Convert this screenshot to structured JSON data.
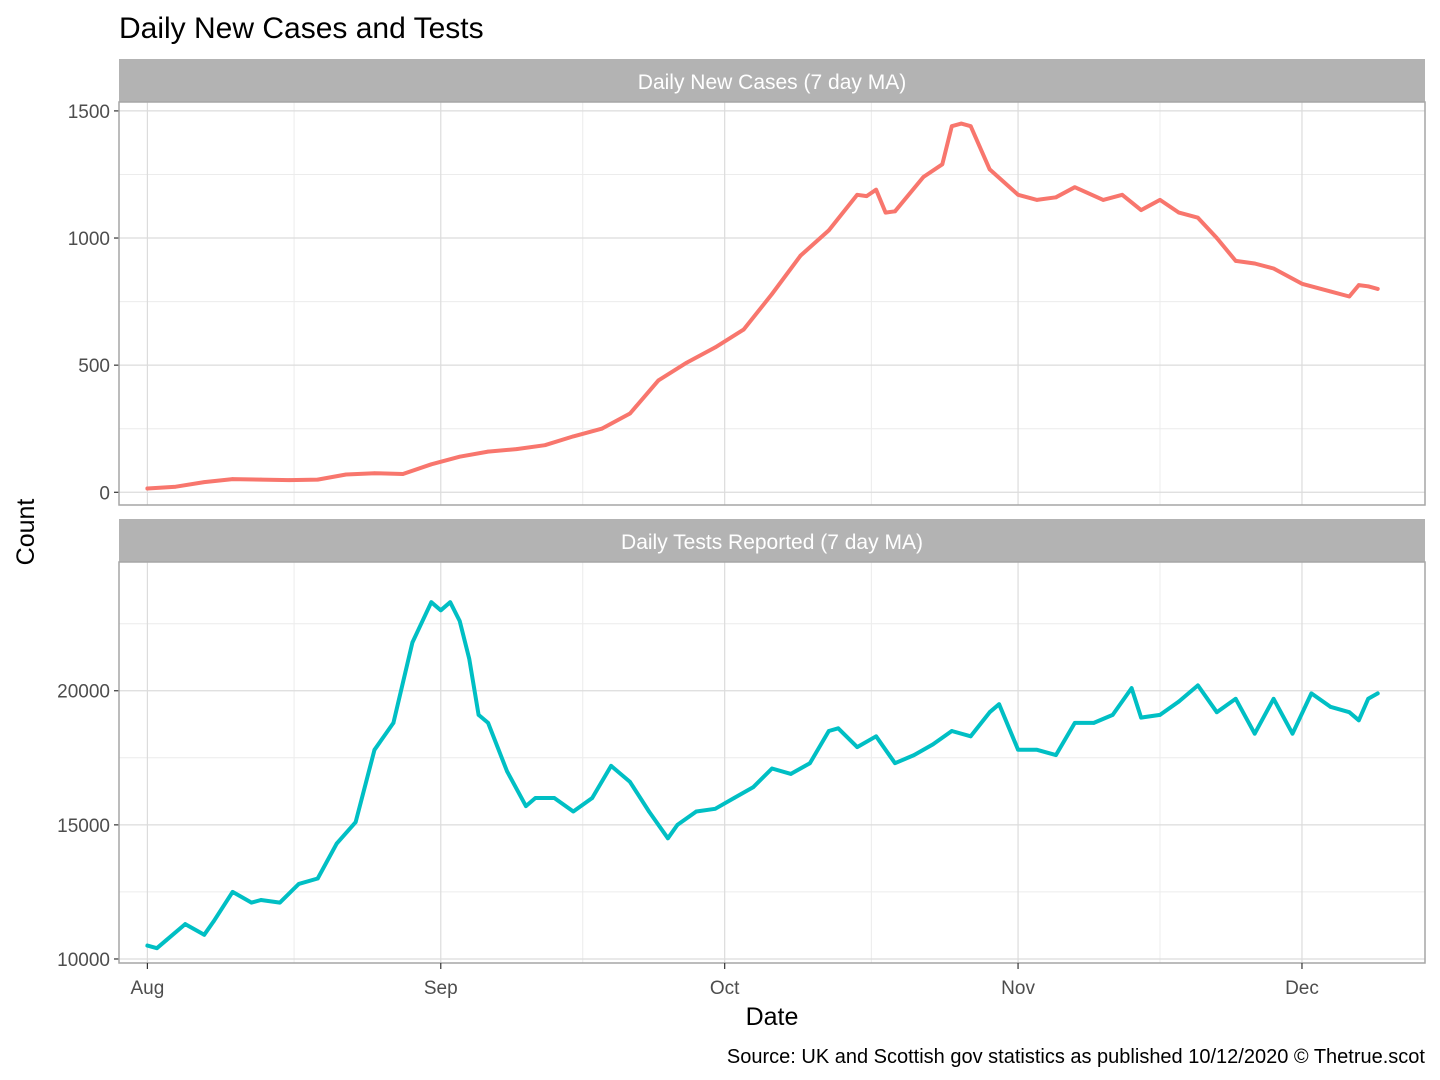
{
  "chart_data": {
    "type": "line",
    "title": "Daily New Cases and Tests",
    "xlabel": "Date",
    "ylabel": "Count",
    "caption": "Source: UK and Scottish gov statistics as published 10/12/2020  © Thetrue.scot",
    "x_range": [
      "2020-07-29",
      "2020-12-14"
    ],
    "x_ticks": [
      {
        "date": "2020-08-01",
        "label": "Aug"
      },
      {
        "date": "2020-09-01",
        "label": "Sep"
      },
      {
        "date": "2020-10-01",
        "label": "Oct"
      },
      {
        "date": "2020-11-01",
        "label": "Nov"
      },
      {
        "date": "2020-12-01",
        "label": "Dec"
      }
    ],
    "grid": true,
    "panels": [
      {
        "strip": "Daily New Cases (7 day MA)",
        "color": "#F8766D",
        "ylim": [
          -50,
          1535
        ],
        "y_ticks": [
          0,
          500,
          1000,
          1500
        ],
        "x": [
          "2020-08-01",
          "2020-08-04",
          "2020-08-07",
          "2020-08-10",
          "2020-08-13",
          "2020-08-16",
          "2020-08-19",
          "2020-08-22",
          "2020-08-25",
          "2020-08-28",
          "2020-08-31",
          "2020-09-03",
          "2020-09-06",
          "2020-09-09",
          "2020-09-12",
          "2020-09-15",
          "2020-09-18",
          "2020-09-21",
          "2020-09-24",
          "2020-09-27",
          "2020-09-30",
          "2020-10-03",
          "2020-10-06",
          "2020-10-09",
          "2020-10-12",
          "2020-10-15",
          "2020-10-16",
          "2020-10-17",
          "2020-10-18",
          "2020-10-19",
          "2020-10-22",
          "2020-10-24",
          "2020-10-25",
          "2020-10-26",
          "2020-10-27",
          "2020-10-29",
          "2020-11-01",
          "2020-11-03",
          "2020-11-05",
          "2020-11-07",
          "2020-11-10",
          "2020-11-12",
          "2020-11-14",
          "2020-11-16",
          "2020-11-18",
          "2020-11-20",
          "2020-11-22",
          "2020-11-24",
          "2020-11-26",
          "2020-11-28",
          "2020-12-01",
          "2020-12-04",
          "2020-12-06",
          "2020-12-07",
          "2020-12-08",
          "2020-12-09"
        ],
        "values": [
          15,
          22,
          40,
          52,
          50,
          48,
          50,
          70,
          75,
          72,
          110,
          140,
          160,
          170,
          185,
          220,
          250,
          310,
          440,
          510,
          570,
          640,
          780,
          930,
          1030,
          1170,
          1165,
          1190,
          1100,
          1105,
          1240,
          1290,
          1440,
          1450,
          1440,
          1270,
          1170,
          1150,
          1160,
          1200,
          1150,
          1170,
          1110,
          1150,
          1100,
          1080,
          1000,
          910,
          900,
          880,
          820,
          790,
          770,
          815,
          810,
          800
        ]
      },
      {
        "strip": "Daily Tests Reported (7 day MA)",
        "color": "#00BFC4",
        "ylim": [
          9850,
          24800
        ],
        "y_ticks": [
          10000,
          15000,
          20000
        ],
        "x": [
          "2020-08-01",
          "2020-08-02",
          "2020-08-03",
          "2020-08-05",
          "2020-08-07",
          "2020-08-08",
          "2020-08-10",
          "2020-08-12",
          "2020-08-13",
          "2020-08-15",
          "2020-08-17",
          "2020-08-19",
          "2020-08-21",
          "2020-08-23",
          "2020-08-25",
          "2020-08-27",
          "2020-08-29",
          "2020-08-31",
          "2020-09-01",
          "2020-09-02",
          "2020-09-03",
          "2020-09-04",
          "2020-09-05",
          "2020-09-06",
          "2020-09-08",
          "2020-09-10",
          "2020-09-11",
          "2020-09-13",
          "2020-09-15",
          "2020-09-17",
          "2020-09-19",
          "2020-09-21",
          "2020-09-23",
          "2020-09-25",
          "2020-09-26",
          "2020-09-28",
          "2020-09-30",
          "2020-10-02",
          "2020-10-04",
          "2020-10-06",
          "2020-10-08",
          "2020-10-10",
          "2020-10-12",
          "2020-10-13",
          "2020-10-15",
          "2020-10-17",
          "2020-10-19",
          "2020-10-21",
          "2020-10-23",
          "2020-10-25",
          "2020-10-27",
          "2020-10-29",
          "2020-10-30",
          "2020-11-01",
          "2020-11-03",
          "2020-11-05",
          "2020-11-07",
          "2020-11-09",
          "2020-11-11",
          "2020-11-13",
          "2020-11-14",
          "2020-11-16",
          "2020-11-18",
          "2020-11-20",
          "2020-11-22",
          "2020-11-24",
          "2020-11-26",
          "2020-11-28",
          "2020-11-30",
          "2020-12-02",
          "2020-12-04",
          "2020-12-06",
          "2020-12-07",
          "2020-12-08",
          "2020-12-09"
        ],
        "values": [
          10500,
          10400,
          10700,
          11300,
          10900,
          11400,
          12500,
          12100,
          12200,
          12100,
          12800,
          13000,
          14300,
          15100,
          17800,
          18800,
          21800,
          23300,
          23000,
          23300,
          22600,
          21200,
          19100,
          18800,
          17000,
          15700,
          16000,
          16000,
          15500,
          16000,
          17200,
          16600,
          15500,
          14500,
          15000,
          15500,
          15600,
          16000,
          16400,
          17100,
          16900,
          17300,
          18500,
          18600,
          17900,
          18300,
          17300,
          17600,
          18000,
          18500,
          18300,
          19200,
          19500,
          17800,
          17800,
          17600,
          18800,
          18800,
          19100,
          20100,
          19000,
          19100,
          19600,
          20200,
          19200,
          19700,
          18400,
          19700,
          18400,
          19900,
          19400,
          19200,
          18900,
          19700,
          19900
        ]
      }
    ]
  }
}
